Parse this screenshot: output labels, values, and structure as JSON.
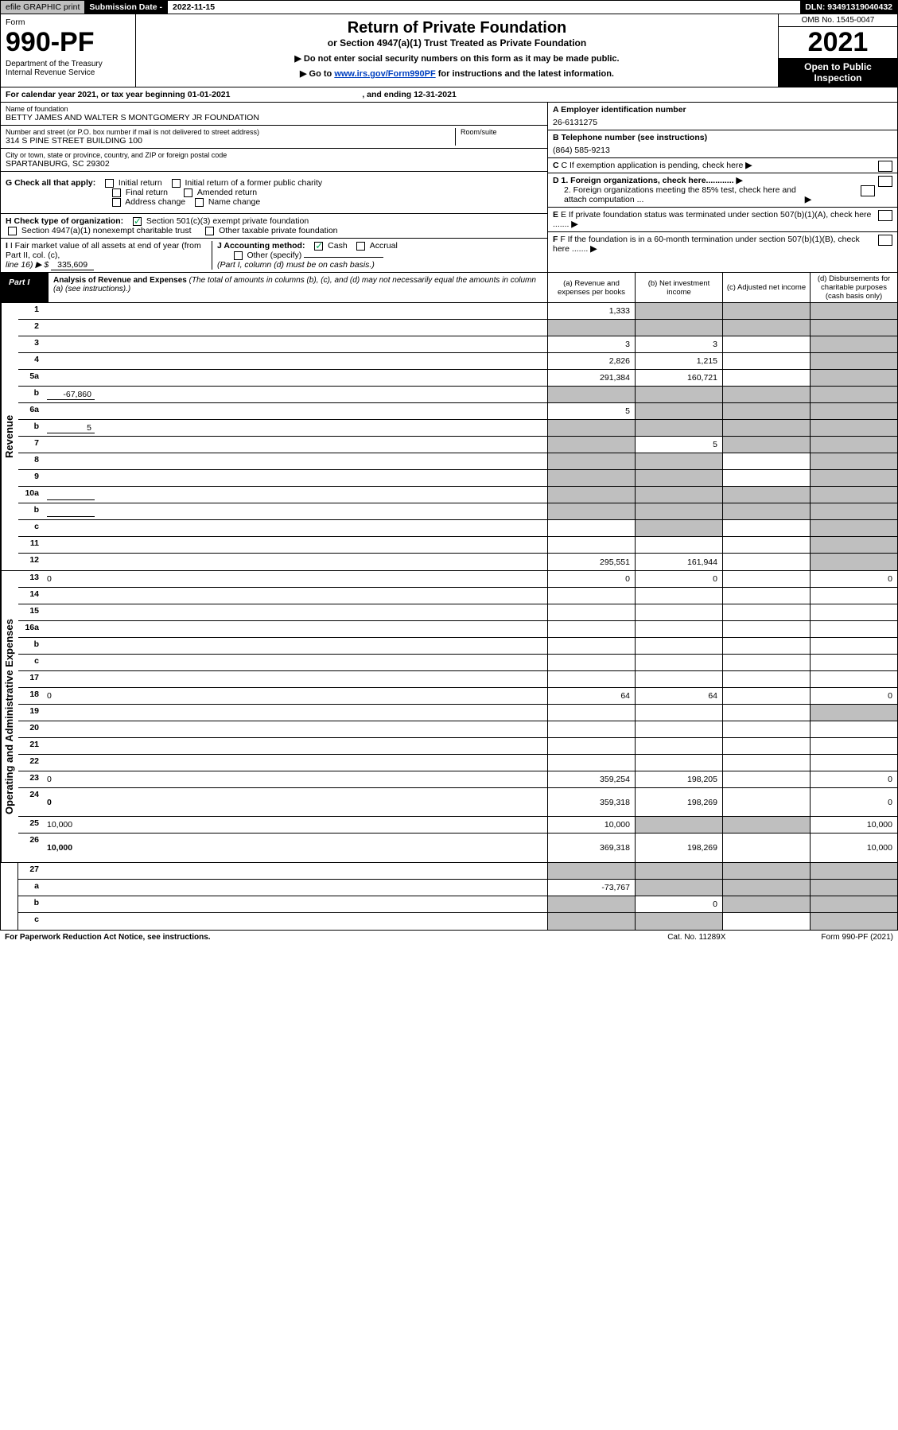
{
  "header": {
    "efile": "efile GRAPHIC print",
    "sub_label": "Submission Date - ",
    "sub_date": "2022-11-15",
    "dln": "DLN: 93491319040432"
  },
  "form_box": {
    "form_word": "Form",
    "form_num": "990-PF",
    "dept1": "Department of the Treasury",
    "dept2": "Internal Revenue Service",
    "title": "Return of Private Foundation",
    "subtitle": "or Section 4947(a)(1) Trust Treated as Private Foundation",
    "instr1": "▶ Do not enter social security numbers on this form as it may be made public.",
    "instr2_pre": "▶ Go to ",
    "instr2_link": "www.irs.gov/Form990PF",
    "instr2_post": " for instructions and the latest information.",
    "omb": "OMB No. 1545-0047",
    "year": "2021",
    "open": "Open to Public Inspection"
  },
  "cal": {
    "pre": "For calendar year 2021, or tax year beginning ",
    "begin": "01-01-2021",
    "mid": ", and ending ",
    "end": "12-31-2021"
  },
  "idL": {
    "name_lbl": "Name of foundation",
    "name": "BETTY JAMES AND WALTER S MONTGOMERY JR FOUNDATION",
    "addr_lbl": "Number and street (or P.O. box number if mail is not delivered to street address)",
    "addr": "314 S PINE STREET BUILDING 100",
    "room_lbl": "Room/suite",
    "city_lbl": "City or town, state or province, country, and ZIP or foreign postal code",
    "city": "SPARTANBURG, SC  29302",
    "g_lbl": "G Check all that apply:",
    "g_initial": "Initial return",
    "g_initial_pub": "Initial return of a former public charity",
    "g_final": "Final return",
    "g_amended": "Amended return",
    "g_addr": "Address change",
    "g_name": "Name change",
    "h_lbl": "H Check type of organization:",
    "h_501": "Section 501(c)(3) exempt private foundation",
    "h_4947": "Section 4947(a)(1) nonexempt charitable trust",
    "h_other": "Other taxable private foundation",
    "i_lbl": "I Fair market value of all assets at end of year (from Part II, col. (c),",
    "i_line": "line 16) ▶ $",
    "i_val": "335,609",
    "j_lbl": "J Accounting method:",
    "j_cash": "Cash",
    "j_accr": "Accrual",
    "j_other": "Other (specify)",
    "j_note": "(Part I, column (d) must be on cash basis.)"
  },
  "idR": {
    "a_lbl": "A Employer identification number",
    "a_val": "26-6131275",
    "b_lbl": "B Telephone number (see instructions)",
    "b_val": "(864) 585-9213",
    "c_lbl": "C If exemption application is pending, check here",
    "d1": "D 1. Foreign organizations, check here............",
    "d2": "2. Foreign organizations meeting the 85% test, check here and attach computation ...",
    "e_lbl": "E If private foundation status was terminated under section 507(b)(1)(A), check here .......",
    "f_lbl": "F If the foundation is in a 60-month termination under section 507(b)(1)(B), check here ......."
  },
  "part1": {
    "tag": "Part I",
    "title": "Analysis of Revenue and Expenses",
    "note": " (The total of amounts in columns (b), (c), and (d) may not necessarily equal the amounts in column (a) (see instructions).)",
    "col_a": "(a) Revenue and expenses per books",
    "col_b": "(b) Net investment income",
    "col_c": "(c) Adjusted net income",
    "col_d": "(d) Disbursements for charitable purposes (cash basis only)"
  },
  "side": {
    "rev": "Revenue",
    "exp": "Operating and Administrative Expenses"
  },
  "rows": {
    "1": {
      "n": "1",
      "d": "",
      "a": "1,333",
      "b": "",
      "c": "",
      "sb": true,
      "sc": true,
      "sd": true
    },
    "2": {
      "n": "2",
      "d": "",
      "a": "",
      "b": "",
      "c": "",
      "sa": true,
      "sb": true,
      "sc": true,
      "sd": true,
      "noamts": true
    },
    "3": {
      "n": "3",
      "d": "",
      "a": "3",
      "b": "3",
      "c": "",
      "sd": true
    },
    "4": {
      "n": "4",
      "d": "",
      "a": "2,826",
      "b": "1,215",
      "c": "",
      "sd": true
    },
    "5a": {
      "n": "5a",
      "d": "",
      "a": "291,384",
      "b": "160,721",
      "c": "",
      "sd": true
    },
    "5b": {
      "n": "b",
      "d": "",
      "sub": "-67,860",
      "a": "",
      "b": "",
      "c": "",
      "sa": true,
      "sb": true,
      "sc": true,
      "sd": true
    },
    "6a": {
      "n": "6a",
      "d": "",
      "a": "5",
      "b": "",
      "c": "",
      "sb": true,
      "sc": true,
      "sd": true
    },
    "6b": {
      "n": "b",
      "d": "",
      "sub": "5",
      "a": "",
      "b": "",
      "c": "",
      "sa": true,
      "sb": true,
      "sc": true,
      "sd": true
    },
    "7": {
      "n": "7",
      "d": "",
      "a": "",
      "b": "5",
      "c": "",
      "sa": true,
      "sc": true,
      "sd": true
    },
    "8": {
      "n": "8",
      "d": "",
      "a": "",
      "b": "",
      "c": "",
      "sa": true,
      "sb": true,
      "sd": true
    },
    "9": {
      "n": "9",
      "d": "",
      "a": "",
      "b": "",
      "c": "",
      "sa": true,
      "sb": true,
      "sd": true
    },
    "10a": {
      "n": "10a",
      "d": "",
      "sub": "",
      "a": "",
      "b": "",
      "c": "",
      "sa": true,
      "sb": true,
      "sc": true,
      "sd": true
    },
    "10b": {
      "n": "b",
      "d": "",
      "sub": "",
      "a": "",
      "b": "",
      "c": "",
      "sa": true,
      "sb": true,
      "sc": true,
      "sd": true
    },
    "10c": {
      "n": "c",
      "d": "",
      "a": "",
      "b": "",
      "c": "",
      "sb": true,
      "sd": true
    },
    "11": {
      "n": "11",
      "d": "",
      "a": "",
      "b": "",
      "c": "",
      "sd": true
    },
    "12": {
      "n": "12",
      "d": "",
      "a": "295,551",
      "b": "161,944",
      "c": "",
      "sd": true,
      "bold": true
    },
    "13": {
      "n": "13",
      "d": "0",
      "a": "0",
      "b": "0",
      "c": ""
    },
    "14": {
      "n": "14",
      "d": "",
      "a": "",
      "b": "",
      "c": ""
    },
    "15": {
      "n": "15",
      "d": "",
      "a": "",
      "b": "",
      "c": ""
    },
    "16a": {
      "n": "16a",
      "d": "",
      "a": "",
      "b": "",
      "c": ""
    },
    "16b": {
      "n": "b",
      "d": "",
      "a": "",
      "b": "",
      "c": ""
    },
    "16c": {
      "n": "c",
      "d": "",
      "a": "",
      "b": "",
      "c": ""
    },
    "17": {
      "n": "17",
      "d": "",
      "a": "",
      "b": "",
      "c": ""
    },
    "18": {
      "n": "18",
      "d": "0",
      "a": "64",
      "b": "64",
      "c": ""
    },
    "19": {
      "n": "19",
      "d": "",
      "a": "",
      "b": "",
      "c": "",
      "sd": true
    },
    "20": {
      "n": "20",
      "d": "",
      "a": "",
      "b": "",
      "c": ""
    },
    "21": {
      "n": "21",
      "d": "",
      "a": "",
      "b": "",
      "c": ""
    },
    "22": {
      "n": "22",
      "d": "",
      "a": "",
      "b": "",
      "c": ""
    },
    "23": {
      "n": "23",
      "d": "0",
      "a": "359,254",
      "b": "198,205",
      "c": ""
    },
    "24": {
      "n": "24",
      "d": "0",
      "a": "359,318",
      "b": "198,269",
      "c": "",
      "bold": true,
      "tall": true
    },
    "25": {
      "n": "25",
      "d": "10,000",
      "a": "10,000",
      "b": "",
      "c": "",
      "sb": true,
      "sc": true
    },
    "26": {
      "n": "26",
      "d": "10,000",
      "a": "369,318",
      "b": "198,269",
      "c": "",
      "bold": true,
      "tall": true
    },
    "27": {
      "n": "27",
      "d": "",
      "a": "",
      "b": "",
      "c": "",
      "sa": true,
      "sb": true,
      "sc": true,
      "sd": true
    },
    "27a": {
      "n": "a",
      "d": "",
      "a": "-73,767",
      "b": "",
      "c": "",
      "sb": true,
      "sc": true,
      "sd": true,
      "bold": true
    },
    "27b": {
      "n": "b",
      "d": "",
      "a": "",
      "b": "0",
      "c": "",
      "sa": true,
      "sc": true,
      "sd": true,
      "bold": true
    },
    "27c": {
      "n": "c",
      "d": "",
      "a": "",
      "b": "",
      "c": "",
      "sa": true,
      "sb": true,
      "sd": true,
      "bold": true
    }
  },
  "footer": {
    "paperwork": "For Paperwork Reduction Act Notice, see instructions.",
    "cat": "Cat. No. 11289X",
    "form": "Form 990-PF (2021)"
  }
}
